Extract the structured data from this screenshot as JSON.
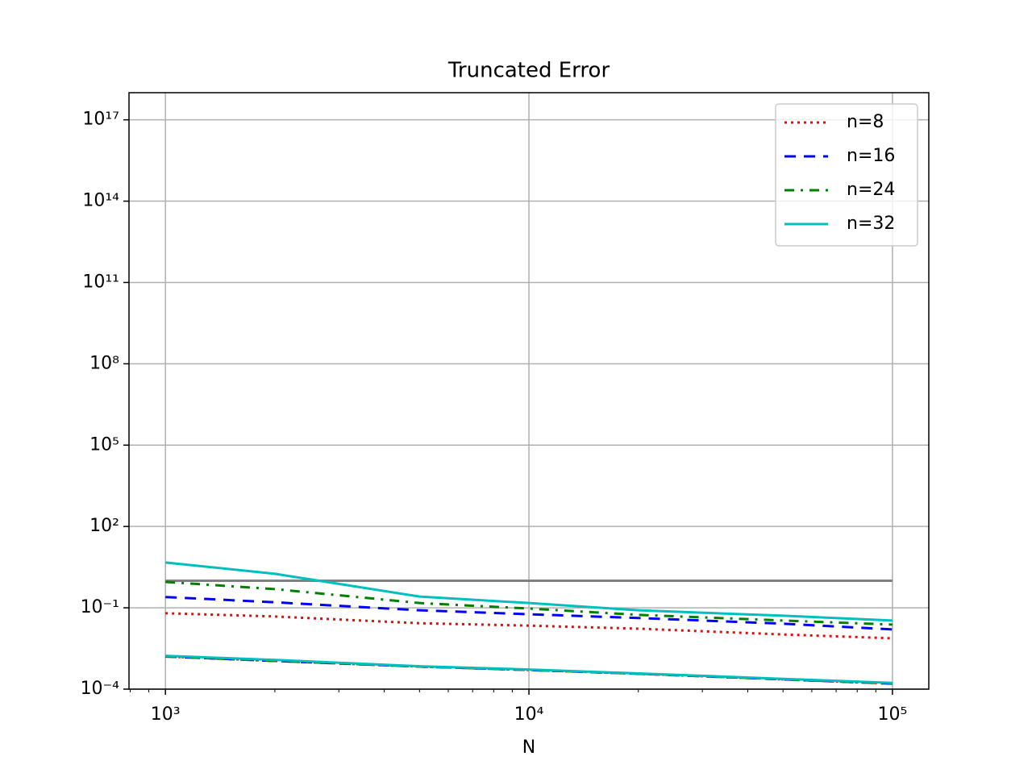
{
  "chart_data": {
    "type": "line",
    "title": "Truncated Error",
    "xlabel": "N",
    "xscale": "log",
    "yscale": "log",
    "grid": true,
    "legend": "upper right",
    "xlim": [
      794,
      125893
    ],
    "ylim": [
      0.0001,
      1e+18
    ],
    "xticks": [
      {
        "value": 1000,
        "label": "10³"
      },
      {
        "value": 10000,
        "label": "10⁴"
      },
      {
        "value": 100000,
        "label": "10⁵"
      }
    ],
    "xminorticks": [
      800,
      900,
      2000,
      3000,
      4000,
      5000,
      6000,
      7000,
      8000,
      9000,
      20000,
      30000,
      40000,
      50000,
      60000,
      70000,
      80000,
      90000
    ],
    "yticks": [
      {
        "value": 0.0001,
        "label": "10⁻⁴"
      },
      {
        "value": 0.1,
        "label": "10⁻¹"
      },
      {
        "value": 100,
        "label": "10²"
      },
      {
        "value": 100000,
        "label": "10⁵"
      },
      {
        "value": 100000000,
        "label": "10⁸"
      },
      {
        "value": 100000000000,
        "label": "10¹¹"
      },
      {
        "value": 100000000000000,
        "label": "10¹⁴"
      },
      {
        "value": 100000000000000000,
        "label": "10¹⁷"
      }
    ],
    "x": [
      1000,
      2000,
      5000,
      10000,
      20000,
      50000,
      100000
    ],
    "series": [
      {
        "name": "n=8",
        "color": "#ff0000",
        "dash": "3,5",
        "values": [
          0.063,
          0.048,
          0.027,
          0.022,
          0.017,
          0.0104,
          0.0075
        ],
        "lower_values": [
          0.0016,
          0.0011,
          0.00068,
          0.00051,
          0.00037,
          0.00023,
          0.00016
        ]
      },
      {
        "name": "n=16",
        "color": "#0000ff",
        "dash": "14,10",
        "values": [
          0.25,
          0.16,
          0.081,
          0.058,
          0.042,
          0.026,
          0.016
        ],
        "lower_values": [
          0.0016,
          0.0011,
          0.00068,
          0.00051,
          0.00037,
          0.00023,
          0.00016
        ]
      },
      {
        "name": "n=24",
        "color": "#008000",
        "dash": "12,8,3,8",
        "values": [
          0.9,
          0.49,
          0.15,
          0.094,
          0.055,
          0.034,
          0.024
        ],
        "lower_values": [
          0.0016,
          0.0011,
          0.00068,
          0.00051,
          0.00037,
          0.00023,
          0.00016
        ]
      },
      {
        "name": "n=32",
        "color": "#00bfbf",
        "dash": "none",
        "values": [
          4.7,
          1.8,
          0.26,
          0.15,
          0.081,
          0.051,
          0.034
        ],
        "lower_values": [
          0.0017,
          0.0012,
          0.0007,
          0.00053,
          0.00038,
          0.00024,
          0.00017
        ]
      }
    ],
    "reference": {
      "color": "#808080",
      "x": [
        1000,
        100000
      ],
      "values": [
        1,
        1
      ]
    }
  }
}
